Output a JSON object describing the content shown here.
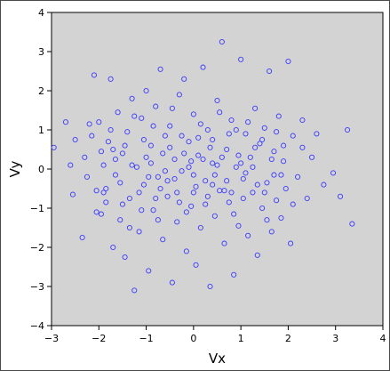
{
  "chart_data": {
    "type": "scatter",
    "title": "",
    "xlabel": "Vx",
    "ylabel": "Vy",
    "xlim": [
      -3,
      4
    ],
    "ylim": [
      -4,
      4
    ],
    "x_ticks": [
      -3,
      -2,
      -1,
      0,
      1,
      2,
      3,
      4
    ],
    "y_ticks": [
      -4,
      -3,
      -2,
      -1,
      0,
      1,
      2,
      3,
      4
    ],
    "grid": false,
    "marker": "open-circle",
    "colors": {
      "plot_background": "#d3d3d3",
      "marker": "#3a3aff"
    },
    "n_points": 1000,
    "distribution_note_visible": false,
    "series": [
      {
        "points": [
          [
            -2.95,
            0.55
          ],
          [
            -2.7,
            1.2
          ],
          [
            -2.6,
            0.1
          ],
          [
            -2.55,
            -0.65
          ],
          [
            -2.5,
            0.75
          ],
          [
            -2.35,
            -1.75
          ],
          [
            -2.3,
            0.3
          ],
          [
            -2.2,
            1.15
          ],
          [
            -2.1,
            2.4
          ],
          [
            -2.05,
            -0.55
          ],
          [
            -2.0,
            1.2
          ],
          [
            -1.95,
            -1.15
          ],
          [
            -1.9,
            0.1
          ],
          [
            -1.85,
            -0.5
          ],
          [
            -1.8,
            0.7
          ],
          [
            -1.75,
            2.3
          ],
          [
            -1.7,
            -2.0
          ],
          [
            -1.65,
            -0.15
          ],
          [
            -1.6,
            1.45
          ],
          [
            -1.55,
            -1.3
          ],
          [
            -1.5,
            0.4
          ],
          [
            -1.45,
            -2.25
          ],
          [
            -1.4,
            0.95
          ],
          [
            -1.35,
            -0.75
          ],
          [
            -1.3,
            1.8
          ],
          [
            -1.25,
            -3.1
          ],
          [
            -1.2,
            0.05
          ],
          [
            -1.15,
            -1.6
          ],
          [
            -1.1,
            1.3
          ],
          [
            -1.05,
            -0.4
          ],
          [
            -1.0,
            2.0
          ],
          [
            -0.95,
            -2.6
          ],
          [
            -0.9,
            0.6
          ],
          [
            -0.85,
            -1.05
          ],
          [
            -0.8,
            1.6
          ],
          [
            -0.75,
            -0.2
          ],
          [
            -0.7,
            2.55
          ],
          [
            -0.65,
            -1.8
          ],
          [
            -0.6,
            0.85
          ],
          [
            -0.55,
            -0.7
          ],
          [
            -0.5,
            1.1
          ],
          [
            -0.45,
            -2.9
          ],
          [
            -0.4,
            0.25
          ],
          [
            -0.35,
            -1.35
          ],
          [
            -0.3,
            1.9
          ],
          [
            -0.25,
            -0.05
          ],
          [
            -0.2,
            2.3
          ],
          [
            -0.15,
            -2.1
          ],
          [
            -0.1,
            0.7
          ],
          [
            -0.05,
            -0.95
          ],
          [
            0.0,
            1.4
          ],
          [
            0.05,
            -2.45
          ],
          [
            0.1,
            0.35
          ],
          [
            0.15,
            -1.5
          ],
          [
            0.2,
            2.6
          ],
          [
            0.25,
            -0.3
          ],
          [
            0.3,
            1.0
          ],
          [
            0.35,
            -3.0
          ],
          [
            0.4,
            0.15
          ],
          [
            0.45,
            -1.2
          ],
          [
            0.5,
            1.75
          ],
          [
            0.55,
            -0.55
          ],
          [
            0.6,
            3.25
          ],
          [
            0.65,
            -1.9
          ],
          [
            0.7,
            0.5
          ],
          [
            0.75,
            -0.85
          ],
          [
            0.8,
            1.25
          ],
          [
            0.85,
            -2.7
          ],
          [
            0.9,
            0.05
          ],
          [
            0.95,
            -1.45
          ],
          [
            1.0,
            2.8
          ],
          [
            1.05,
            -0.25
          ],
          [
            1.1,
            0.9
          ],
          [
            1.15,
            -1.7
          ],
          [
            1.2,
            0.3
          ],
          [
            1.25,
            -0.6
          ],
          [
            1.3,
            1.55
          ],
          [
            1.35,
            -2.2
          ],
          [
            1.4,
            0.65
          ],
          [
            1.45,
            -1.0
          ],
          [
            1.5,
            1.05
          ],
          [
            1.55,
            -0.35
          ],
          [
            1.6,
            2.5
          ],
          [
            1.65,
            -1.6
          ],
          [
            1.7,
            0.45
          ],
          [
            1.75,
            -0.8
          ],
          [
            1.8,
            1.35
          ],
          [
            1.85,
            -1.25
          ],
          [
            1.9,
            0.2
          ],
          [
            1.95,
            -0.5
          ],
          [
            2.0,
            2.75
          ],
          [
            2.05,
            -1.9
          ],
          [
            2.1,
            0.85
          ],
          [
            2.2,
            -0.2
          ],
          [
            2.3,
            1.25
          ],
          [
            2.4,
            -0.75
          ],
          [
            2.5,
            0.3
          ],
          [
            2.6,
            0.9
          ],
          [
            2.75,
            -0.4
          ],
          [
            2.95,
            -0.1
          ],
          [
            3.1,
            -0.7
          ],
          [
            3.25,
            1.0
          ],
          [
            3.35,
            -1.4
          ],
          [
            -1.95,
            0.45
          ],
          [
            -1.85,
            -0.85
          ],
          [
            -1.75,
            1.0
          ],
          [
            -1.65,
            0.25
          ],
          [
            -1.55,
            -0.35
          ],
          [
            -1.45,
            0.6
          ],
          [
            -1.35,
            -1.5
          ],
          [
            -1.25,
            1.35
          ],
          [
            -1.15,
            -0.6
          ],
          [
            -1.05,
            0.75
          ],
          [
            -0.95,
            -0.2
          ],
          [
            -0.85,
            1.1
          ],
          [
            -0.75,
            -1.3
          ],
          [
            -0.65,
            0.4
          ],
          [
            -0.55,
            -0.3
          ],
          [
            -0.45,
            1.55
          ],
          [
            -0.35,
            -0.6
          ],
          [
            -0.25,
            0.85
          ],
          [
            -0.15,
            -1.1
          ],
          [
            -0.05,
            0.2
          ],
          [
            0.05,
            -0.45
          ],
          [
            0.15,
            1.15
          ],
          [
            0.25,
            -0.9
          ],
          [
            0.35,
            0.55
          ],
          [
            0.45,
            -0.15
          ],
          [
            0.55,
            1.45
          ],
          [
            0.65,
            -0.55
          ],
          [
            0.75,
            0.9
          ],
          [
            0.85,
            -1.15
          ],
          [
            0.95,
            0.35
          ],
          [
            1.05,
            -0.75
          ],
          [
            1.15,
            1.2
          ],
          [
            1.25,
            0.05
          ],
          [
            1.35,
            -0.4
          ],
          [
            1.45,
            0.75
          ],
          [
            1.55,
            -1.3
          ],
          [
            1.65,
            0.25
          ],
          [
            1.75,
            0.95
          ],
          [
            1.85,
            -0.15
          ],
          [
            -2.25,
            -0.2
          ],
          [
            -2.15,
            0.85
          ],
          [
            -2.05,
            -1.1
          ],
          [
            -1.9,
            -0.6
          ],
          [
            -1.7,
            0.5
          ],
          [
            -1.5,
            -0.9
          ],
          [
            -1.3,
            0.1
          ],
          [
            -1.1,
            -1.05
          ],
          [
            -0.9,
            0.15
          ],
          [
            -0.7,
            -0.5
          ],
          [
            -0.5,
            0.55
          ],
          [
            -0.3,
            -0.85
          ],
          [
            -0.1,
            0.05
          ],
          [
            0.1,
            0.8
          ],
          [
            0.3,
            -0.7
          ],
          [
            0.5,
            0.1
          ],
          [
            0.7,
            -0.3
          ],
          [
            0.9,
            1.0
          ],
          [
            1.1,
            -0.1
          ],
          [
            1.3,
            0.55
          ],
          [
            1.5,
            -0.6
          ],
          [
            1.7,
            -0.15
          ],
          [
            1.9,
            0.6
          ],
          [
            2.1,
            -0.9
          ],
          [
            2.3,
            0.55
          ],
          [
            -0.6,
            -0.05
          ],
          [
            -0.4,
            -0.25
          ],
          [
            -0.2,
            0.4
          ],
          [
            0.0,
            -0.15
          ],
          [
            0.2,
            0.25
          ],
          [
            0.4,
            -0.4
          ],
          [
            0.6,
            0.3
          ],
          [
            0.8,
            -0.6
          ],
          [
            1.0,
            0.15
          ],
          [
            -1.0,
            0.3
          ],
          [
            -0.8,
            -0.75
          ],
          [
            0.0,
            -0.6
          ],
          [
            0.4,
            0.75
          ]
        ]
      }
    ]
  }
}
